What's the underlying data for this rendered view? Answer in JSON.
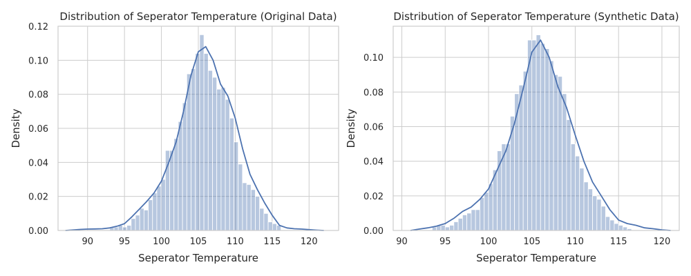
{
  "chart_data": [
    {
      "type": "histogram",
      "title": "Distribution of Seperator Temperature (Original Data)",
      "xlabel": "Seperator Temperature",
      "ylabel": "Density",
      "xlim": [
        86,
        124
      ],
      "ylim": [
        0,
        0.12
      ],
      "xticks": [
        "90",
        "95",
        "100",
        "105",
        "110",
        "115",
        "120"
      ],
      "yticks": [
        "0.00",
        "0.02",
        "0.04",
        "0.06",
        "0.08",
        "0.10",
        "0.12"
      ],
      "grid": true,
      "bar_color": "#4c72b0",
      "line_color": "#4c72b0",
      "bins": {
        "start": 93.0,
        "width": 0.58,
        "densities": [
          0.002,
          0.002,
          0.003,
          0.002,
          0.003,
          0.007,
          0.009,
          0.013,
          0.012,
          0.018,
          0.022,
          0.026,
          0.03,
          0.047,
          0.047,
          0.054,
          0.064,
          0.075,
          0.092,
          0.095,
          0.104,
          0.115,
          0.104,
          0.094,
          0.09,
          0.083,
          0.084,
          0.077,
          0.066,
          0.052,
          0.039,
          0.028,
          0.027,
          0.024,
          0.02,
          0.013,
          0.01,
          0.005,
          0.004,
          0.003
        ]
      },
      "kde": {
        "x": [
          87,
          88,
          89,
          90,
          91,
          92,
          93,
          94,
          95,
          96,
          97,
          98,
          99,
          100,
          101,
          102,
          103,
          104,
          105,
          106,
          107,
          108,
          109,
          110,
          111,
          112,
          113,
          114,
          115,
          116,
          117,
          118,
          119,
          120,
          121,
          122
        ],
        "y": [
          0.0,
          0.0003,
          0.0006,
          0.0008,
          0.0009,
          0.001,
          0.0015,
          0.0025,
          0.004,
          0.008,
          0.0125,
          0.017,
          0.022,
          0.029,
          0.04,
          0.052,
          0.07,
          0.091,
          0.105,
          0.108,
          0.1,
          0.086,
          0.079,
          0.066,
          0.048,
          0.033,
          0.024,
          0.016,
          0.009,
          0.003,
          0.0015,
          0.001,
          0.0008,
          0.0005,
          0.0002,
          0.0
        ]
      }
    },
    {
      "type": "histogram",
      "title": "Distribution of Seperator Temperature (Synthetic Data)",
      "xlabel": "Seperator Temperature",
      "ylabel": "Density",
      "xlim": [
        89,
        122
      ],
      "ylim": [
        0,
        0.118
      ],
      "xticks": [
        "90",
        "95",
        "100",
        "105",
        "110",
        "115",
        "120"
      ],
      "yticks": [
        "0.00",
        "0.02",
        "0.04",
        "0.06",
        "0.08",
        "0.10"
      ],
      "grid": true,
      "bar_color": "#4c72b0",
      "line_color": "#4c72b0",
      "bins": {
        "start": 93.5,
        "width": 0.5,
        "densities": [
          0.002,
          0.003,
          0.003,
          0.002,
          0.003,
          0.005,
          0.007,
          0.009,
          0.01,
          0.012,
          0.012,
          0.019,
          0.022,
          0.027,
          0.035,
          0.046,
          0.05,
          0.05,
          0.066,
          0.079,
          0.084,
          0.092,
          0.11,
          0.11,
          0.113,
          0.108,
          0.105,
          0.098,
          0.09,
          0.089,
          0.079,
          0.064,
          0.05,
          0.043,
          0.036,
          0.028,
          0.024,
          0.02,
          0.018,
          0.014,
          0.008,
          0.006,
          0.004,
          0.003,
          0.002,
          0.001
        ]
      },
      "kde": {
        "x": [
          91,
          92,
          93,
          94,
          95,
          96,
          97,
          98,
          99,
          100,
          101,
          102,
          103,
          104,
          105,
          106,
          107,
          108,
          109,
          110,
          111,
          112,
          113,
          114,
          115,
          116,
          117,
          118,
          119,
          120,
          121
        ],
        "y": [
          0.0,
          0.0008,
          0.0015,
          0.0025,
          0.004,
          0.007,
          0.011,
          0.0135,
          0.018,
          0.024,
          0.035,
          0.046,
          0.062,
          0.082,
          0.103,
          0.11,
          0.1,
          0.083,
          0.071,
          0.055,
          0.04,
          0.028,
          0.02,
          0.012,
          0.006,
          0.004,
          0.003,
          0.0015,
          0.001,
          0.0003,
          0.0
        ]
      }
    }
  ]
}
